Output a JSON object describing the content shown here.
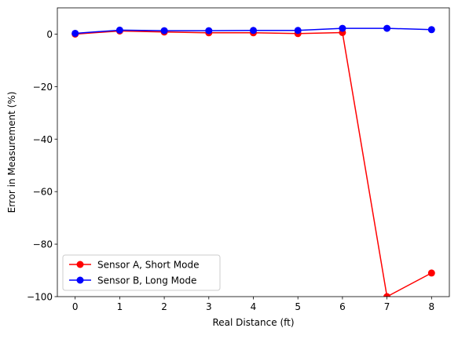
{
  "chart_data": {
    "type": "line",
    "title": "",
    "xlabel": "Real Distance (ft)",
    "ylabel": "Error in Measurement (%)",
    "xlim": [
      -0.4,
      8.4
    ],
    "ylim": [
      -100,
      10
    ],
    "x_ticks": [
      0,
      1,
      2,
      3,
      4,
      5,
      6,
      7,
      8
    ],
    "y_ticks": [
      0,
      -20,
      -40,
      -60,
      -80,
      -100
    ],
    "x_tick_labels": [
      "0",
      "1",
      "2",
      "3",
      "4",
      "5",
      "6",
      "7",
      "8"
    ],
    "y_tick_labels": [
      "0",
      "−20",
      "−40",
      "−60",
      "−80",
      "−100"
    ],
    "grid": false,
    "legend_position": "lower-left",
    "x": [
      0,
      1,
      2,
      3,
      4,
      5,
      6,
      7,
      8
    ],
    "series": [
      {
        "name": "Sensor A, Short Mode",
        "color": "#ff0000",
        "marker": "circle",
        "values": [
          0,
          1.2,
          0.8,
          0.5,
          0.5,
          0.2,
          0.6,
          -100,
          -91
        ]
      },
      {
        "name": "Sensor B, Long Mode",
        "color": "#0000ff",
        "marker": "circle",
        "values": [
          0.3,
          1.5,
          1.3,
          1.3,
          1.4,
          1.4,
          2.2,
          2.2,
          1.7
        ]
      }
    ]
  }
}
